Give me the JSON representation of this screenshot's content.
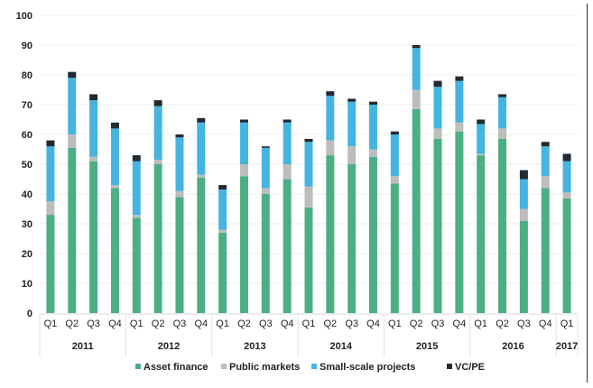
{
  "chart_data": {
    "type": "bar",
    "stacked": true,
    "title": "",
    "xlabel": "",
    "ylabel": "",
    "ylim": [
      0,
      100
    ],
    "yticks": [
      0,
      10,
      20,
      30,
      40,
      50,
      60,
      70,
      80,
      90,
      100
    ],
    "grid": true,
    "legend_position": "bottom",
    "categories": [
      "Q1",
      "Q2",
      "Q3",
      "Q4",
      "Q1",
      "Q2",
      "Q3",
      "Q4",
      "Q1",
      "Q2",
      "Q3",
      "Q4",
      "Q1",
      "Q2",
      "Q3",
      "Q4",
      "Q1",
      "Q2",
      "Q3",
      "Q4",
      "Q1",
      "Q2",
      "Q3",
      "Q4",
      "Q1"
    ],
    "groups": [
      {
        "label": "2011",
        "count": 4
      },
      {
        "label": "2012",
        "count": 4
      },
      {
        "label": "2013",
        "count": 4
      },
      {
        "label": "2014",
        "count": 4
      },
      {
        "label": "2015",
        "count": 4
      },
      {
        "label": "2016",
        "count": 4
      },
      {
        "label": "2017",
        "count": 1
      }
    ],
    "series": [
      {
        "name": "Asset finance",
        "color": "#4caf84",
        "values": [
          33,
          55.5,
          51,
          42,
          32,
          50,
          39,
          45.5,
          27,
          46,
          40,
          45,
          35.5,
          53,
          50,
          52.5,
          43.5,
          68.5,
          58.5,
          61,
          53,
          58.5,
          31,
          42,
          38.5
        ]
      },
      {
        "name": "Public markets",
        "color": "#bdbdbd",
        "values": [
          4.5,
          4.5,
          1.5,
          1,
          1,
          1.5,
          2,
          1,
          1,
          4,
          2,
          5,
          7,
          5,
          6,
          2.5,
          2.5,
          6.5,
          3.5,
          3,
          0.5,
          3.5,
          4,
          4,
          2
        ]
      },
      {
        "name": "Small-scale projects",
        "color": "#45b5e0",
        "values": [
          18.5,
          19,
          19,
          19,
          18,
          18,
          18,
          17.5,
          13.5,
          14,
          13.5,
          14,
          15,
          15,
          15,
          15,
          14,
          14,
          14,
          14,
          10,
          10.5,
          10,
          10,
          10.5
        ]
      },
      {
        "name": "VC/PE",
        "color": "#222a33",
        "values": [
          2,
          2,
          2,
          2,
          2,
          2,
          1,
          1.5,
          1.5,
          1,
          0.5,
          1,
          1,
          1.5,
          1,
          1,
          1,
          1,
          2,
          1.5,
          1.5,
          1,
          3,
          1.5,
          2.5
        ]
      }
    ]
  }
}
